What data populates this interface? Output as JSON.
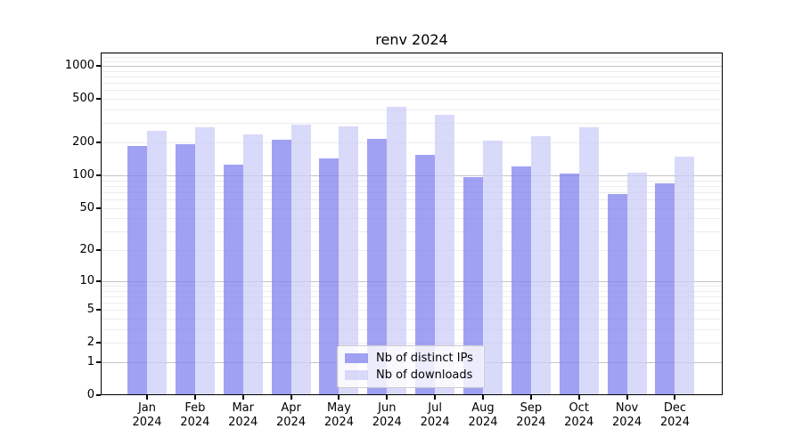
{
  "chart_data": {
    "type": "bar",
    "title": "renv 2024",
    "categories": [
      "Jan",
      "Feb",
      "Mar",
      "Apr",
      "May",
      "Jun",
      "Jul",
      "Aug",
      "Sep",
      "Oct",
      "Nov",
      "Dec"
    ],
    "x_tick_year": "2024",
    "series": [
      {
        "name": "Nb of distinct IPs",
        "color": "#8282f0",
        "alpha": 0.75,
        "values": [
          187,
          192,
          125,
          212,
          142,
          216,
          154,
          96,
          120,
          104,
          67,
          84
        ]
      },
      {
        "name": "Nb of downloads",
        "color": "#ccccf7",
        "alpha": 0.75,
        "values": [
          256,
          277,
          239,
          292,
          279,
          423,
          356,
          207,
          228,
          277,
          106,
          149
        ]
      }
    ],
    "yscale": "log1p",
    "y_ticks": [
      0,
      1,
      2,
      5,
      10,
      20,
      50,
      100,
      200,
      500,
      1000
    ],
    "ylim": [
      0,
      1330
    ],
    "grid": true,
    "legend_position": "lower center",
    "axis_color": "#000000",
    "grid_major_color": "#c4c4c4",
    "grid_minor_color": "#ececec"
  }
}
